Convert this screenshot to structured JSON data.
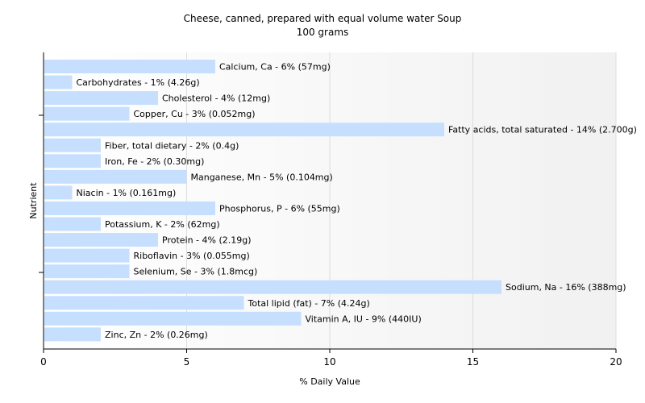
{
  "chart_data": {
    "type": "bar",
    "orientation": "horizontal",
    "title": "Cheese, canned, prepared with equal volume water Soup",
    "subtitle": "100 grams",
    "xlabel": "% Daily Value",
    "ylabel": "Nutrient",
    "xlim": [
      0,
      20
    ],
    "xticks": [
      0,
      5,
      10,
      15,
      20
    ],
    "grid": true,
    "bar_color": "#c6dfff",
    "categories": [
      "Calcium, Ca",
      "Carbohydrates",
      "Cholesterol",
      "Copper, Cu",
      "Fatty acids, total saturated",
      "Fiber, total dietary",
      "Iron, Fe",
      "Manganese, Mn",
      "Niacin",
      "Phosphorus, P",
      "Potassium, K",
      "Protein",
      "Riboflavin",
      "Selenium, Se",
      "Sodium, Na",
      "Total lipid (fat)",
      "Vitamin A, IU",
      "Zinc, Zn"
    ],
    "values": [
      6,
      1,
      4,
      3,
      14,
      2,
      2,
      5,
      1,
      6,
      2,
      4,
      3,
      3,
      16,
      7,
      9,
      2
    ],
    "labels": [
      "Calcium, Ca - 6% (57mg)",
      "Carbohydrates - 1% (4.26g)",
      "Cholesterol - 4% (12mg)",
      "Copper, Cu - 3% (0.052mg)",
      "Fatty acids, total saturated - 14% (2.700g)",
      "Fiber, total dietary - 2% (0.4g)",
      "Iron, Fe - 2% (0.30mg)",
      "Manganese, Mn - 5% (0.104mg)",
      "Niacin - 1% (0.161mg)",
      "Phosphorus, P - 6% (55mg)",
      "Potassium, K - 2% (62mg)",
      "Protein - 4% (2.19g)",
      "Riboflavin - 3% (0.055mg)",
      "Selenium, Se - 3% (1.8mcg)",
      "Sodium, Na - 16% (388mg)",
      "Total lipid (fat) - 7% (4.24g)",
      "Vitamin A, IU - 9% (440IU)",
      "Zinc, Zn - 2% (0.26mg)"
    ]
  }
}
